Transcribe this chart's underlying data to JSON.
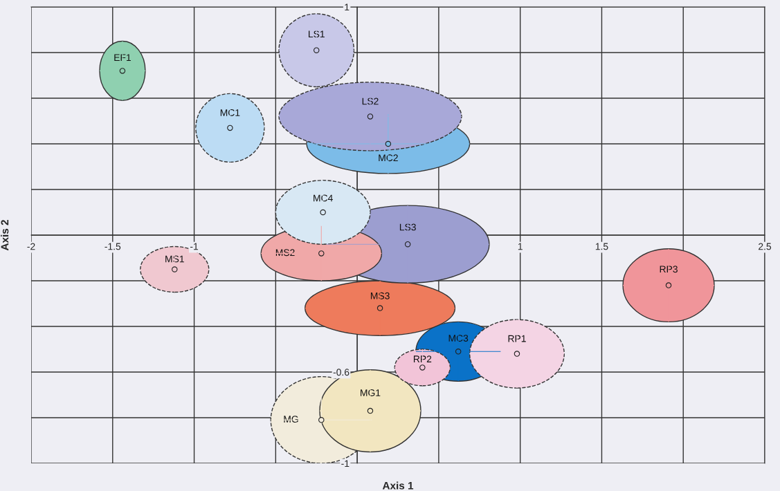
{
  "chart_data": {
    "type": "scatter",
    "xlabel": "Axis 1",
    "ylabel": "Axis 2",
    "xlim": [
      -2,
      2.5
    ],
    "ylim": [
      -1,
      1
    ],
    "xticks": [
      -2,
      -1.5,
      -1,
      {
        "value": -0.5,
        "label": null
      },
      {
        "value": 0,
        "label": null
      },
      {
        "value": 0.5,
        "label": null
      },
      1,
      1.5,
      {
        "value": 2,
        "label": null
      },
      2.5
    ],
    "yticks": [
      -1,
      {
        "value": -0.8,
        "label": null
      },
      -0.6,
      {
        "value": -0.4,
        "label": null
      },
      {
        "value": -0.2,
        "label": null
      },
      {
        "value": 0,
        "label": null
      },
      {
        "value": 0.2,
        "label": null
      },
      {
        "value": 0.4,
        "label": null
      },
      {
        "value": 0.6,
        "label": null
      },
      {
        "value": 0.8,
        "label": null
      },
      1
    ],
    "grid": true,
    "marker": "circle",
    "series": [
      {
        "name": "MG",
        "color": "#f2ecdc",
        "line_style": "dashed",
        "x": [
          -0.22
        ],
        "values": [
          -0.81
        ],
        "xerrors": [
          0.31
        ],
        "errors": [
          0.19
        ]
      },
      {
        "name": "MG1",
        "color": "#f2e6c0",
        "line_style": "solid",
        "x": [
          0.08
        ],
        "values": [
          -0.77
        ],
        "xerrors": [
          0.31
        ],
        "errors": [
          0.18
        ]
      },
      {
        "name": "MC3",
        "color": "#0a72c8",
        "line_style": "solid",
        "x": [
          0.62
        ],
        "values": [
          -0.51
        ],
        "xerrors": [
          0.26
        ],
        "errors": [
          0.13
        ]
      },
      {
        "name": "RP2",
        "color": "#f2c4d8",
        "line_style": "dashed",
        "x": [
          0.4
        ],
        "values": [
          -0.58
        ],
        "xerrors": [
          0.17
        ],
        "errors": [
          0.08
        ]
      },
      {
        "name": "RP1",
        "color": "#f4d4e4",
        "line_style": "dashed",
        "x": [
          0.98
        ],
        "values": [
          -0.52
        ],
        "xerrors": [
          0.29
        ],
        "errors": [
          0.15
        ]
      },
      {
        "name": "MS3",
        "color": "#ee7b5c",
        "line_style": "solid",
        "x": [
          0.14
        ],
        "values": [
          -0.32
        ],
        "xerrors": [
          0.46
        ],
        "errors": [
          0.12
        ]
      },
      {
        "name": "LS3",
        "color": "#9c9ed0",
        "line_style": "solid",
        "x": [
          0.31
        ],
        "values": [
          -0.04
        ],
        "xerrors": [
          0.5
        ],
        "errors": [
          0.17
        ]
      },
      {
        "name": "MS2",
        "color": "#f0a8a8",
        "line_style": "solid",
        "x": [
          -0.22
        ],
        "values": [
          -0.08
        ],
        "xerrors": [
          0.37
        ],
        "errors": [
          0.12
        ]
      },
      {
        "name": "MC4",
        "color": "#d8e8f4",
        "line_style": "dashed",
        "x": [
          -0.21
        ],
        "values": [
          0.1
        ],
        "xerrors": [
          0.29
        ],
        "errors": [
          0.14
        ]
      },
      {
        "name": "MC2",
        "color": "#7cbce8",
        "line_style": "solid",
        "x": [
          0.19
        ],
        "values": [
          0.4
        ],
        "xerrors": [
          0.5
        ],
        "errors": [
          0.13
        ]
      },
      {
        "name": "LS2",
        "color": "#a8a8d8",
        "line_style": "dashed",
        "x": [
          0.08
        ],
        "values": [
          0.52
        ],
        "xerrors": [
          0.56
        ],
        "errors": [
          0.15
        ]
      },
      {
        "name": "LS1",
        "color": "#c8c8e8",
        "line_style": "dashed",
        "x": [
          -0.25
        ],
        "values": [
          0.81
        ],
        "xerrors": [
          0.23
        ],
        "errors": [
          0.16
        ]
      },
      {
        "name": "MC1",
        "color": "#bcdcf4",
        "line_style": "dashed",
        "x": [
          -0.78
        ],
        "values": [
          0.47
        ],
        "xerrors": [
          0.21
        ],
        "errors": [
          0.15
        ]
      },
      {
        "name": "EF1",
        "color": "#8fd0b0",
        "line_style": "solid",
        "x": [
          -1.44
        ],
        "values": [
          0.72
        ],
        "xerrors": [
          0.14
        ],
        "errors": [
          0.13
        ]
      },
      {
        "name": "MS1",
        "color": "#f0c8d0",
        "line_style": "dashed",
        "x": [
          -1.12
        ],
        "values": [
          -0.15
        ],
        "xerrors": [
          0.21
        ],
        "errors": [
          0.1
        ]
      },
      {
        "name": "RP3",
        "color": "#f0959a",
        "line_style": "solid",
        "x": [
          1.91
        ],
        "values": [
          -0.22
        ],
        "xerrors": [
          0.28
        ],
        "errors": [
          0.16
        ]
      }
    ]
  }
}
